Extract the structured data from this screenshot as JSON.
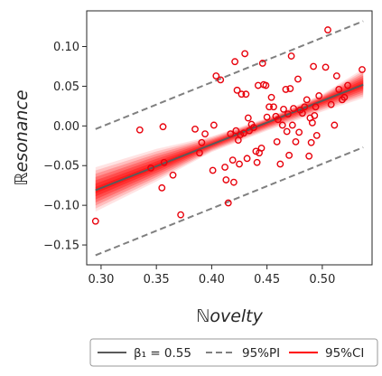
{
  "chart_data": {
    "type": "scatter",
    "xlabel": "ℕovelty",
    "ylabel": "ℝesonance",
    "xlim": [
      0.287,
      0.545
    ],
    "ylim": [
      -0.175,
      0.145
    ],
    "xticks": [
      0.3,
      0.35,
      0.4,
      0.45,
      0.5
    ],
    "xtick_labels": [
      "0.30",
      "0.35",
      "0.40",
      "0.45",
      "0.50"
    ],
    "yticks": [
      -0.15,
      -0.1,
      -0.05,
      0.0,
      0.05,
      0.1
    ],
    "ytick_labels": [
      "−0.15",
      "−0.10",
      "−0.05",
      "0.00",
      "0.05",
      "0.10"
    ],
    "grid": false,
    "legend_position": "bottom-outside",
    "colors": {
      "points": "#e8000b",
      "fit": "#5a5a5a",
      "pi": "#808080",
      "ci": "#ff0000"
    },
    "fit_line": {
      "x": [
        0.295,
        0.537
      ],
      "y": [
        -0.081,
        0.052
      ]
    },
    "pi_upper": {
      "x": [
        0.295,
        0.537
      ],
      "y": [
        -0.004,
        0.132
      ]
    },
    "pi_lower": {
      "x": [
        0.295,
        0.537
      ],
      "y": [
        -0.163,
        -0.027
      ]
    },
    "ci_band": {
      "x": [
        0.295,
        0.35,
        0.4,
        0.45,
        0.5,
        0.537
      ],
      "lower": [
        -0.108,
        -0.07,
        -0.033,
        -0.006,
        0.018,
        0.035
      ],
      "upper": [
        -0.052,
        -0.029,
        -0.013,
        0.01,
        0.04,
        0.072
      ]
    },
    "points": [
      {
        "x": 0.295,
        "y": -0.12
      },
      {
        "x": 0.335,
        "y": -0.005
      },
      {
        "x": 0.345,
        "y": -0.053
      },
      {
        "x": 0.355,
        "y": -0.078
      },
      {
        "x": 0.356,
        "y": -0.001
      },
      {
        "x": 0.357,
        "y": -0.046
      },
      {
        "x": 0.365,
        "y": -0.062
      },
      {
        "x": 0.372,
        "y": -0.112
      },
      {
        "x": 0.385,
        "y": -0.004
      },
      {
        "x": 0.389,
        "y": -0.034
      },
      {
        "x": 0.391,
        "y": -0.021
      },
      {
        "x": 0.394,
        "y": -0.01
      },
      {
        "x": 0.401,
        "y": -0.056
      },
      {
        "x": 0.402,
        "y": 0.001
      },
      {
        "x": 0.404,
        "y": 0.063
      },
      {
        "x": 0.408,
        "y": 0.058
      },
      {
        "x": 0.412,
        "y": -0.052
      },
      {
        "x": 0.413,
        "y": -0.068
      },
      {
        "x": 0.415,
        "y": -0.097
      },
      {
        "x": 0.417,
        "y": -0.01
      },
      {
        "x": 0.419,
        "y": -0.043
      },
      {
        "x": 0.42,
        "y": -0.071
      },
      {
        "x": 0.421,
        "y": 0.081
      },
      {
        "x": 0.422,
        "y": -0.006
      },
      {
        "x": 0.423,
        "y": 0.045
      },
      {
        "x": 0.424,
        "y": -0.018
      },
      {
        "x": 0.425,
        "y": -0.048
      },
      {
        "x": 0.426,
        "y": -0.011
      },
      {
        "x": 0.427,
        "y": 0.04
      },
      {
        "x": 0.429,
        "y": -0.009
      },
      {
        "x": 0.43,
        "y": 0.091
      },
      {
        "x": 0.431,
        "y": 0.04
      },
      {
        "x": 0.432,
        "y": -0.041
      },
      {
        "x": 0.433,
        "y": 0.01
      },
      {
        "x": 0.434,
        "y": -0.006
      },
      {
        "x": 0.436,
        "y": 0.002
      },
      {
        "x": 0.438,
        "y": -0.002
      },
      {
        "x": 0.44,
        "y": -0.032
      },
      {
        "x": 0.441,
        "y": -0.046
      },
      {
        "x": 0.442,
        "y": 0.051
      },
      {
        "x": 0.443,
        "y": -0.034
      },
      {
        "x": 0.445,
        "y": -0.028
      },
      {
        "x": 0.446,
        "y": 0.079
      },
      {
        "x": 0.447,
        "y": 0.052
      },
      {
        "x": 0.449,
        "y": 0.051
      },
      {
        "x": 0.45,
        "y": 0.011
      },
      {
        "x": 0.452,
        "y": 0.024
      },
      {
        "x": 0.454,
        "y": 0.036
      },
      {
        "x": 0.456,
        "y": 0.024
      },
      {
        "x": 0.458,
        "y": 0.012
      },
      {
        "x": 0.459,
        "y": -0.02
      },
      {
        "x": 0.46,
        "y": 0.008
      },
      {
        "x": 0.462,
        "y": -0.048
      },
      {
        "x": 0.464,
        "y": 0.001
      },
      {
        "x": 0.465,
        "y": 0.021
      },
      {
        "x": 0.467,
        "y": 0.046
      },
      {
        "x": 0.468,
        "y": -0.007
      },
      {
        "x": 0.469,
        "y": 0.015
      },
      {
        "x": 0.47,
        "y": -0.037
      },
      {
        "x": 0.471,
        "y": 0.047
      },
      {
        "x": 0.472,
        "y": 0.088
      },
      {
        "x": 0.473,
        "y": 0.001
      },
      {
        "x": 0.474,
        "y": 0.022
      },
      {
        "x": 0.476,
        "y": -0.02
      },
      {
        "x": 0.478,
        "y": 0.059
      },
      {
        "x": 0.479,
        "y": -0.008
      },
      {
        "x": 0.48,
        "y": 0.02
      },
      {
        "x": 0.482,
        "y": 0.016
      },
      {
        "x": 0.484,
        "y": 0.024
      },
      {
        "x": 0.486,
        "y": 0.033
      },
      {
        "x": 0.488,
        "y": -0.038
      },
      {
        "x": 0.489,
        "y": 0.01
      },
      {
        "x": 0.49,
        "y": -0.021
      },
      {
        "x": 0.491,
        "y": 0.004
      },
      {
        "x": 0.492,
        "y": 0.075
      },
      {
        "x": 0.493,
        "y": 0.013
      },
      {
        "x": 0.494,
        "y": 0.024
      },
      {
        "x": 0.495,
        "y": -0.012
      },
      {
        "x": 0.497,
        "y": 0.038
      },
      {
        "x": 0.503,
        "y": 0.074
      },
      {
        "x": 0.505,
        "y": 0.121
      },
      {
        "x": 0.508,
        "y": 0.027
      },
      {
        "x": 0.511,
        "y": 0.001
      },
      {
        "x": 0.513,
        "y": 0.063
      },
      {
        "x": 0.515,
        "y": 0.046
      },
      {
        "x": 0.518,
        "y": 0.033
      },
      {
        "x": 0.52,
        "y": 0.036
      },
      {
        "x": 0.523,
        "y": 0.051
      },
      {
        "x": 0.536,
        "y": 0.071
      }
    ],
    "legend": [
      {
        "kind": "fit",
        "label": "β₁ = 0.55"
      },
      {
        "kind": "pi",
        "label": "95%PI"
      },
      {
        "kind": "ci",
        "label": "95%CI"
      }
    ]
  }
}
